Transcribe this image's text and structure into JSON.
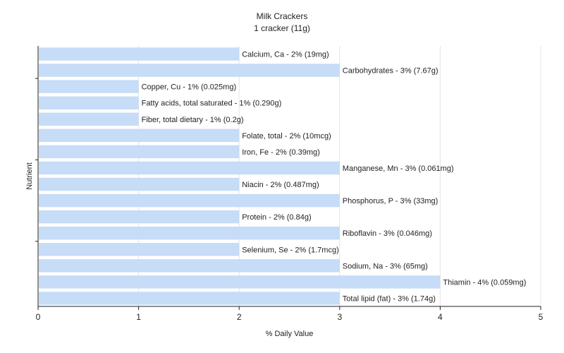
{
  "chart_data": {
    "type": "bar",
    "orientation": "horizontal",
    "title": "Milk Crackers",
    "subtitle": "1 cracker (11g)",
    "xlabel": "% Daily Value",
    "ylabel": "Nutrient",
    "xlim": [
      0,
      5
    ],
    "xticks": [
      "0",
      "1",
      "2",
      "3",
      "4",
      "5"
    ],
    "grid": "vertical",
    "bar_color": "#c6dcf7",
    "categories": [
      "Calcium, Ca",
      "Carbohydrates",
      "Copper, Cu",
      "Fatty acids, total saturated",
      "Fiber, total dietary",
      "Folate, total",
      "Iron, Fe",
      "Manganese, Mn",
      "Niacin",
      "Phosphorus, P",
      "Protein",
      "Riboflavin",
      "Selenium, Se",
      "Sodium, Na",
      "Thiamin",
      "Total lipid (fat)"
    ],
    "values": [
      2,
      3,
      1,
      1,
      1,
      2,
      2,
      3,
      2,
      3,
      2,
      3,
      2,
      3,
      4,
      3
    ],
    "labels": [
      "Calcium, Ca - 2% (19mg)",
      "Carbohydrates - 3% (7.67g)",
      "Copper, Cu - 1% (0.025mg)",
      "Fatty acids, total saturated - 1% (0.290g)",
      "Fiber, total dietary - 1% (0.2g)",
      "Folate, total - 2% (10mcg)",
      "Iron, Fe - 2% (0.39mg)",
      "Manganese, Mn - 3% (0.061mg)",
      "Niacin - 2% (0.487mg)",
      "Phosphorus, P - 3% (33mg)",
      "Protein - 2% (0.84g)",
      "Riboflavin - 3% (0.046mg)",
      "Selenium, Se - 2% (1.7mcg)",
      "Sodium, Na - 3% (65mg)",
      "Thiamin - 4% (0.059mg)",
      "Total lipid (fat) - 3% (1.74g)"
    ]
  }
}
